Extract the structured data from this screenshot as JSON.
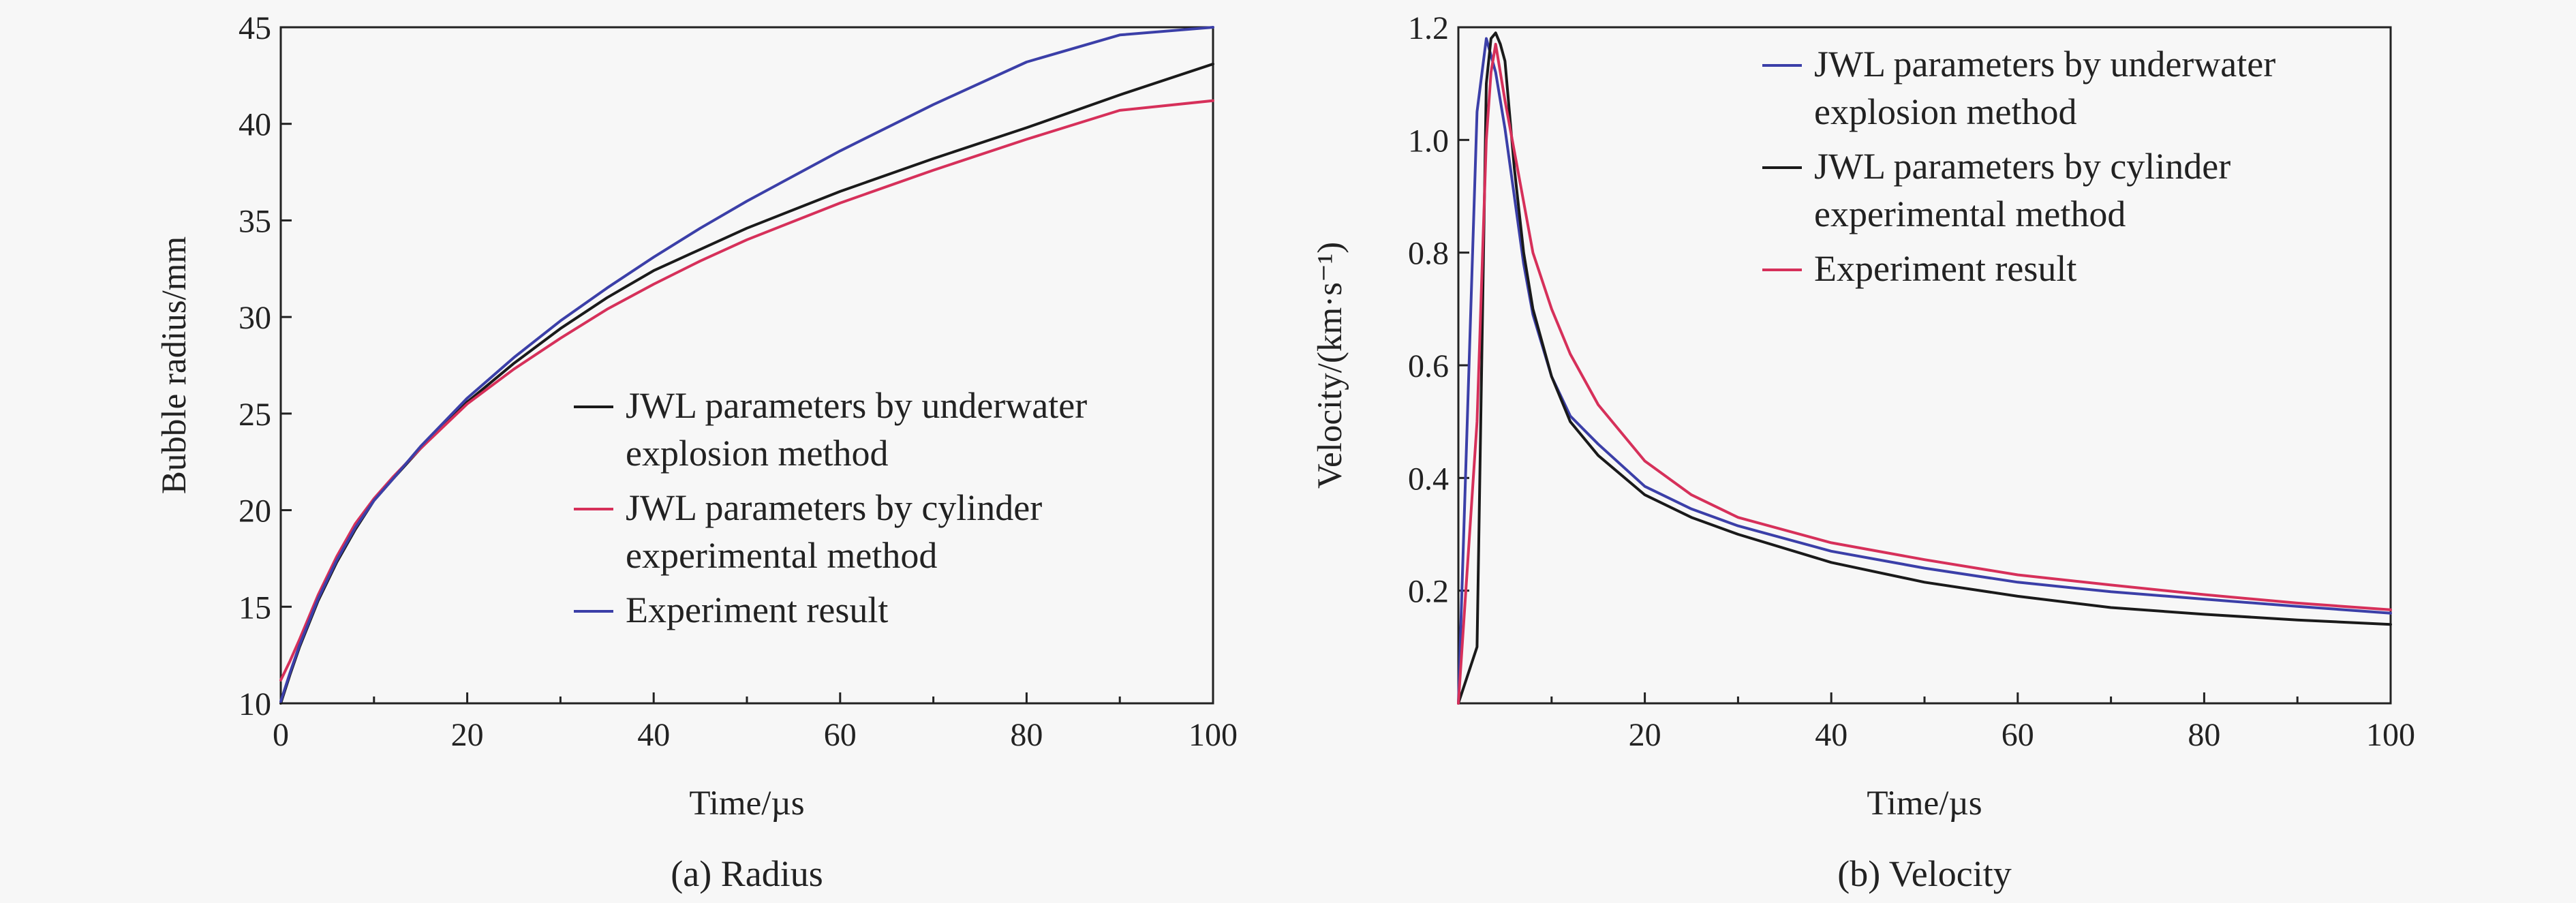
{
  "colors": {
    "black": "#1a1a1a",
    "red": "#d6305a",
    "blue": "#3b3fa8"
  },
  "chart_data": [
    {
      "id": "radius",
      "type": "line",
      "caption": "(a) Radius",
      "xlabel": "Time/µs",
      "ylabel": "Bubble radius/mm",
      "xlim": [
        0,
        100
      ],
      "ylim": [
        10,
        45
      ],
      "xticks": [
        0,
        20,
        40,
        60,
        80,
        100
      ],
      "yticks": [
        10,
        15,
        20,
        25,
        30,
        35,
        40,
        45
      ],
      "xminor": [
        10,
        30,
        50,
        70,
        90
      ],
      "legend_position": "bottom-right",
      "series": [
        {
          "name": "JWL parameters by underwater explosion method",
          "color": "#1a1a1a",
          "x": [
            0,
            1,
            2,
            4,
            6,
            8,
            10,
            12,
            15,
            20,
            25,
            30,
            35,
            40,
            45,
            50,
            60,
            70,
            80,
            90,
            100
          ],
          "y": [
            10.0,
            11.5,
            12.9,
            15.3,
            17.3,
            19.0,
            20.5,
            21.6,
            23.2,
            25.6,
            27.6,
            29.4,
            31.0,
            32.4,
            33.5,
            34.6,
            36.5,
            38.2,
            39.8,
            41.5,
            43.1
          ]
        },
        {
          "name": "JWL parameters by cylinder experimental method",
          "color": "#d6305a",
          "x": [
            0,
            1,
            2,
            4,
            6,
            8,
            10,
            12,
            15,
            20,
            25,
            30,
            35,
            40,
            45,
            50,
            60,
            70,
            80,
            90,
            100
          ],
          "y": [
            11.2,
            12.2,
            13.3,
            15.6,
            17.6,
            19.3,
            20.6,
            21.7,
            23.2,
            25.5,
            27.3,
            28.9,
            30.4,
            31.7,
            32.9,
            34.0,
            35.9,
            37.6,
            39.2,
            40.7,
            41.2
          ]
        },
        {
          "name": "Experiment result",
          "color": "#3b3fa8",
          "x": [
            0,
            1,
            2,
            4,
            6,
            8,
            10,
            12,
            15,
            20,
            25,
            30,
            35,
            40,
            45,
            50,
            60,
            70,
            80,
            90,
            100
          ],
          "y": [
            10.1,
            11.6,
            13.0,
            15.4,
            17.4,
            19.1,
            20.5,
            21.6,
            23.3,
            25.8,
            27.9,
            29.8,
            31.5,
            33.1,
            34.6,
            36.0,
            38.6,
            41.0,
            43.2,
            44.6,
            45.0
          ]
        }
      ]
    },
    {
      "id": "velocity",
      "type": "line",
      "caption": "(b) Velocity",
      "xlabel": "Time/µs",
      "ylabel": "Velocity/(km·s⁻¹)",
      "xlim": [
        0,
        100
      ],
      "ylim": [
        0,
        1.2
      ],
      "xticks": [
        20,
        40,
        60,
        80,
        100
      ],
      "yticks": [
        0.2,
        0.4,
        0.6,
        0.8,
        1.0,
        1.2
      ],
      "ytick_labels": [
        "0.2",
        "0.4",
        "0.6",
        "0.8",
        "1.0",
        "1.2"
      ],
      "xminor": [
        10,
        30,
        50,
        70,
        90
      ],
      "legend_position": "top-right",
      "series": [
        {
          "name": "JWL parameters by underwater explosion method",
          "color": "#3b3fa8",
          "x": [
            0,
            2,
            3,
            4,
            5,
            6,
            7,
            8,
            10,
            12,
            15,
            20,
            25,
            30,
            40,
            50,
            60,
            70,
            80,
            90,
            100
          ],
          "y": [
            0.0,
            1.05,
            1.18,
            1.12,
            1.02,
            0.9,
            0.78,
            0.69,
            0.58,
            0.51,
            0.46,
            0.385,
            0.345,
            0.315,
            0.27,
            0.24,
            0.215,
            0.198,
            0.185,
            0.172,
            0.16
          ]
        },
        {
          "name": "JWL parameters by cylinder experimental method",
          "color": "#1a1a1a",
          "x": [
            0,
            2,
            3,
            3.5,
            4,
            4.5,
            5,
            6,
            7,
            8,
            10,
            12,
            15,
            20,
            25,
            30,
            40,
            50,
            60,
            70,
            80,
            90,
            100
          ],
          "y": [
            0.0,
            0.1,
            1.1,
            1.18,
            1.19,
            1.17,
            1.14,
            0.95,
            0.8,
            0.7,
            0.58,
            0.5,
            0.44,
            0.37,
            0.33,
            0.3,
            0.25,
            0.215,
            0.19,
            0.17,
            0.158,
            0.148,
            0.14
          ]
        },
        {
          "name": "Experiment result",
          "color": "#d6305a",
          "x": [
            0,
            2,
            3,
            3.5,
            4,
            5,
            6,
            7,
            8,
            10,
            12,
            15,
            20,
            25,
            30,
            40,
            50,
            60,
            70,
            80,
            90,
            100
          ],
          "y": [
            0.0,
            0.5,
            1.0,
            1.12,
            1.17,
            1.07,
            0.98,
            0.89,
            0.8,
            0.7,
            0.62,
            0.53,
            0.43,
            0.37,
            0.33,
            0.285,
            0.255,
            0.228,
            0.21,
            0.193,
            0.178,
            0.166
          ]
        }
      ]
    }
  ]
}
